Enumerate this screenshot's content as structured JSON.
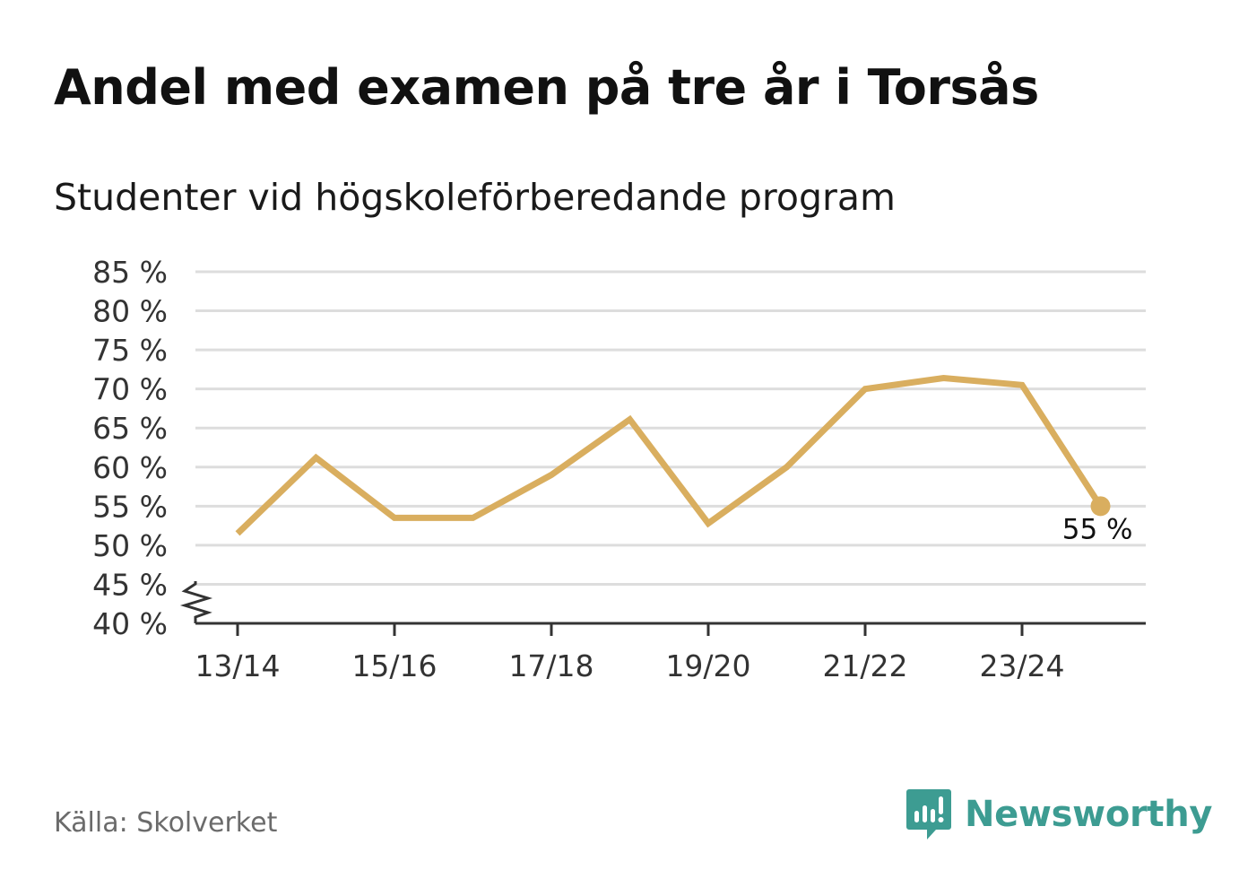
{
  "header": {
    "title": "Andel med examen på tre år i Torsås",
    "subtitle": "Studenter vid högskoleförberedande program"
  },
  "footer": {
    "source": "Källa: Skolverket",
    "brand": "Newsworthy"
  },
  "colors": {
    "line": "#d9ae5f",
    "grid": "#dddddd",
    "axis": "#333333",
    "brand": "#3d9c92"
  },
  "chart_data": {
    "type": "line",
    "x": [
      "13/14",
      "14/15",
      "15/16",
      "16/17",
      "17/18",
      "18/19",
      "19/20",
      "20/21",
      "21/22",
      "22/23",
      "23/24",
      "24/25"
    ],
    "x_tick_labels": [
      "13/14",
      "15/16",
      "17/18",
      "19/20",
      "21/22",
      "23/24"
    ],
    "series": [
      {
        "values": [
          51.5,
          61.2,
          53.5,
          53.5,
          59.0,
          66.1,
          52.8,
          60.0,
          70.0,
          71.4,
          70.5,
          55.0
        ]
      }
    ],
    "ylim": [
      40,
      85
    ],
    "y_ticks": [
      40,
      45,
      50,
      55,
      60,
      65,
      70,
      75,
      80,
      85
    ],
    "y_tick_labels": [
      "40 %",
      "45 %",
      "50 %",
      "55 %",
      "60 %",
      "65 %",
      "70 %",
      "75 %",
      "80 %",
      "85 %"
    ],
    "y_axis_break": true,
    "end_label": "55 %",
    "grid": true,
    "legend": "none"
  }
}
